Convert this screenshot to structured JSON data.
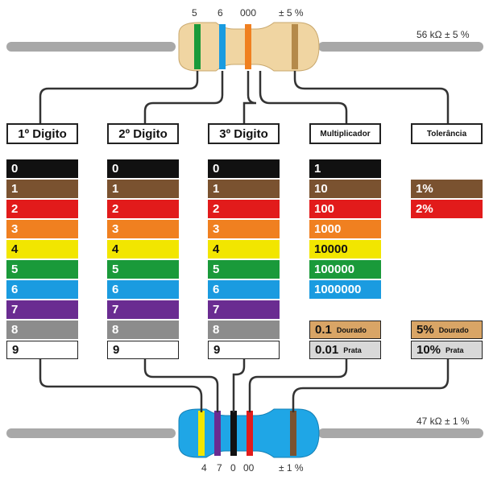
{
  "top_resistor": {
    "band_labels": [
      "5",
      "6",
      "000",
      "± 5 %"
    ],
    "value_label": "56 kΩ ± 5 %",
    "bands": [
      "#1a9a3a",
      "#1a9be0",
      "#f08020",
      "#b58a4a"
    ]
  },
  "bottom_resistor": {
    "band_labels": [
      "4",
      "7",
      "0",
      "00",
      "± 1 %"
    ],
    "value_label": "47 kΩ ± 1 %",
    "bands": [
      "#f2e600",
      "#6a2c91",
      "#111111",
      "#e21b1b",
      "#7a5230"
    ]
  },
  "headers": {
    "digit1": "1º Digito",
    "digit2": "2º Digito",
    "digit3": "3º Digito",
    "multiplier": "Multiplicador",
    "tolerance": "Tolerância"
  },
  "digits": [
    {
      "label": "0",
      "color": "#111111",
      "text": "#ffffff"
    },
    {
      "label": "1",
      "color": "#7a5230",
      "text": "#ffffff"
    },
    {
      "label": "2",
      "color": "#e21b1b",
      "text": "#ffffff"
    },
    {
      "label": "3",
      "color": "#f08020",
      "text": "#ffffff"
    },
    {
      "label": "4",
      "color": "#f2e600",
      "text": "#111111"
    },
    {
      "label": "5",
      "color": "#1a9a3a",
      "text": "#ffffff"
    },
    {
      "label": "6",
      "color": "#1a9be0",
      "text": "#ffffff"
    },
    {
      "label": "7",
      "color": "#6a2c91",
      "text": "#ffffff"
    },
    {
      "label": "8",
      "color": "#8c8c8c",
      "text": "#ffffff"
    },
    {
      "label": "9",
      "color": "#ffffff",
      "text": "#111111"
    }
  ],
  "multipliers": [
    {
      "label": "1",
      "color": "#111111",
      "text": "#ffffff"
    },
    {
      "label": "10",
      "color": "#7a5230",
      "text": "#ffffff"
    },
    {
      "label": "100",
      "color": "#e21b1b",
      "text": "#ffffff"
    },
    {
      "label": "1000",
      "color": "#f08020",
      "text": "#ffffff"
    },
    {
      "label": "10000",
      "color": "#f2e600",
      "text": "#111111"
    },
    {
      "label": "100000",
      "color": "#1a9a3a",
      "text": "#ffffff"
    },
    {
      "label": "1000000",
      "color": "#1a9be0",
      "text": "#ffffff"
    },
    {
      "label": "",
      "color": "",
      "text": ""
    },
    {
      "label": "0.1",
      "sub": "Dourado",
      "color": "#d9a566",
      "text": "#111111"
    },
    {
      "label": "0.01",
      "sub": "Prata",
      "color": "#d8d8d8",
      "text": "#111111"
    }
  ],
  "tolerances": [
    {
      "label": "",
      "color": "",
      "text": ""
    },
    {
      "label": "1%",
      "color": "#7a5230",
      "text": "#ffffff"
    },
    {
      "label": "2%",
      "color": "#e21b1b",
      "text": "#ffffff"
    },
    {
      "label": "",
      "color": "",
      "text": ""
    },
    {
      "label": "",
      "color": "",
      "text": ""
    },
    {
      "label": "",
      "color": "",
      "text": ""
    },
    {
      "label": "",
      "color": "",
      "text": ""
    },
    {
      "label": "",
      "color": "",
      "text": ""
    },
    {
      "label": "5%",
      "sub": "Dourado",
      "color": "#d9a566",
      "text": "#111111"
    },
    {
      "label": "10%",
      "sub": "Prata",
      "color": "#d8d8d8",
      "text": "#111111"
    }
  ]
}
